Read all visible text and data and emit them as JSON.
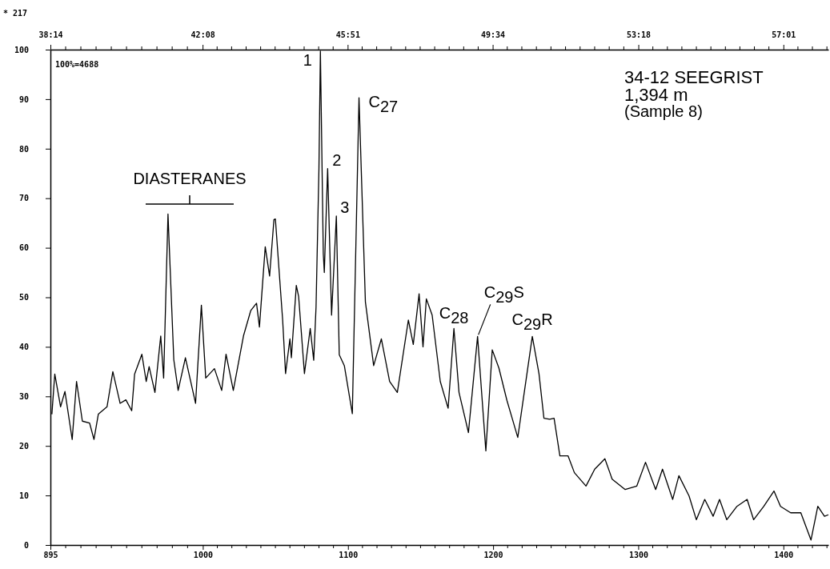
{
  "chart_data": {
    "type": "line",
    "title": "34-12  SEEGRIST",
    "subtitle": "1,394 m",
    "annotations": [
      "(Sample 8)",
      "* 217",
      "100%=4688",
      "DIASTERANES",
      {
        "text": "1",
        "x": 1081,
        "y": 99.7
      },
      {
        "text": "2",
        "x": 1086,
        "y": 76
      },
      {
        "text": "3",
        "x": 1092,
        "y": 66.4
      },
      {
        "text": "C$_{27}$",
        "x": 1107.6,
        "y": 90.3
      },
      {
        "text": "C$_{28}$",
        "x": 1173,
        "y": 43.7
      },
      {
        "text": "C$_{29}$S",
        "x": 1189.3,
        "y": 42.1
      },
      {
        "text": "C$_{29}$R",
        "x": 1227,
        "y": 42.1
      }
    ],
    "xlim": [
      895,
      1431
    ],
    "xticks": [
      895,
      1000,
      1100,
      1200,
      1300,
      1400
    ],
    "x2lim": [
      38.233,
      58.17
    ],
    "x2ticks": [
      {
        "value": 38.233,
        "label": "38:14"
      },
      {
        "value": 42.133,
        "label": "42:08"
      },
      {
        "value": 45.85,
        "label": "45:51"
      },
      {
        "value": 49.567,
        "label": "49:34"
      },
      {
        "value": 53.3,
        "label": "53:18"
      },
      {
        "value": 57.017,
        "label": "57:01"
      }
    ],
    "ylim": [
      0,
      100
    ],
    "yticks": [
      0,
      10,
      20,
      30,
      40,
      50,
      60,
      70,
      80,
      90,
      100
    ],
    "grid": false,
    "marker": "none",
    "line_style": "solid",
    "x": [
      896,
      898,
      902,
      905,
      910,
      913,
      917,
      922,
      925,
      928,
      934,
      938,
      943,
      947,
      951,
      953,
      958,
      961,
      963,
      967,
      971,
      973,
      976,
      980,
      983,
      988,
      995,
      999,
      1002,
      1008,
      1013,
      1016,
      1021,
      1028,
      1033,
      1037,
      1039,
      1043,
      1046,
      1049,
      1050,
      1055,
      1057,
      1060,
      1061,
      1064.4,
      1066,
      1070,
      1074,
      1076.4,
      1078,
      1080,
      1081,
      1083,
      1083.7,
      1086,
      1088.7,
      1092,
      1094,
      1097.5,
      1103,
      1107.6,
      1112,
      1117.7,
      1123,
      1128.7,
      1134,
      1141.6,
      1145,
      1149,
      1151.7,
      1154,
      1158,
      1163.6,
      1169,
      1173,
      1176.5,
      1183,
      1189.3,
      1195,
      1199.4,
      1204,
      1209.5,
      1217,
      1227,
      1231.6,
      1235,
      1239,
      1242,
      1246,
      1251.6,
      1256,
      1264,
      1270,
      1277,
      1282,
      1291,
      1299,
      1305,
      1312,
      1316.7,
      1323.7,
      1328,
      1335,
      1340,
      1345.8,
      1351.6,
      1356,
      1361,
      1368,
      1375,
      1379.5,
      1386.5,
      1393.5,
      1398,
      1405,
      1412,
      1419,
      1423.7,
      1428.3,
      1431
    ],
    "series": [
      {
        "color": "#000000",
        "values": [
          26.4,
          34.5,
          27.9,
          31,
          21.3,
          33,
          25,
          24.6,
          21.3,
          26.4,
          27.9,
          35,
          28.6,
          29.3,
          27.1,
          34.5,
          38.5,
          33,
          36,
          30.8,
          42.2,
          33.7,
          66.8,
          37.4,
          31.2,
          37.8,
          28.6,
          48.4,
          33.7,
          35.6,
          31.2,
          38.5,
          31.2,
          42.2,
          47.3,
          48.8,
          44,
          60.2,
          54.3,
          65.7,
          65.8,
          45.4,
          34.6,
          41.6,
          37.8,
          52.4,
          50.2,
          34.6,
          43.7,
          37.3,
          48,
          76,
          99.7,
          58.8,
          55,
          76,
          46.4,
          66.4,
          38.4,
          36.2,
          26.5,
          90.3,
          49.1,
          36.2,
          41.6,
          33,
          30.8,
          45.4,
          40.5,
          50.7,
          40,
          49.7,
          46.4,
          33,
          27.6,
          43.7,
          30.8,
          22.7,
          42.1,
          19,
          39.4,
          35.7,
          29.2,
          21.7,
          42.1,
          34.6,
          25.6,
          25.4,
          25.6,
          18,
          18,
          14.6,
          11.9,
          15.3,
          17.4,
          13.3,
          11.2,
          11.9,
          16.7,
          11.2,
          15.3,
          9.2,
          14,
          9.9,
          5.1,
          9.2,
          5.8,
          9.2,
          5.1,
          7.8,
          9.2,
          5.1,
          7.8,
          10.9,
          7.8,
          6.5,
          6.5,
          1,
          7.8,
          5.8,
          6.1
        ]
      }
    ]
  }
}
